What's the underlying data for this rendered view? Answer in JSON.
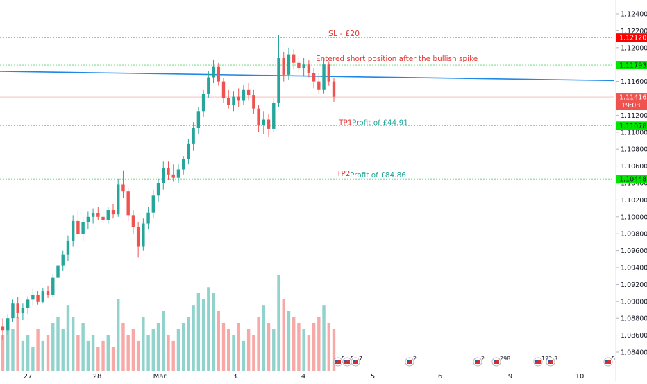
{
  "chart_data": {
    "type": "candlestick",
    "symbol_hint": "EURUSD-style price chart",
    "y_axis": {
      "ticks": [
        "1.12400",
        "1.12200",
        "1.12000",
        "1.11800",
        "1.11600",
        "1.11400",
        "1.11200",
        "1.11000",
        "1.10800",
        "1.10600",
        "1.10400",
        "1.10200",
        "1.10000",
        "1.09800",
        "1.09600",
        "1.09400",
        "1.09200",
        "1.09000",
        "1.08800",
        "1.08600",
        "1.08400"
      ],
      "range": [
        1.0828,
        1.125
      ]
    },
    "x_axis": {
      "ticks": [
        "27",
        "28",
        "Mar",
        "3",
        "4",
        "5",
        "6",
        "9",
        "10"
      ]
    },
    "horizontal_levels": [
      {
        "id": "sl",
        "label": "SL - £20",
        "price": 1.1212,
        "price_label": "1.12120",
        "color": "#e53935",
        "badge_color": "#ff0000"
      },
      {
        "id": "entry",
        "label": "Entered short position after the bullish spike",
        "price": 1.11793,
        "price_label": "1.11793",
        "color": "#2ecc40",
        "badge_color": "#00e600"
      },
      {
        "id": "tp1",
        "label": "TP1",
        "sub_label": "Profit of £44.91",
        "price": 1.11078,
        "price_label": "1.11078",
        "color": "#2ecc40",
        "badge_color": "#00e600"
      },
      {
        "id": "tp2",
        "label": "TP2",
        "sub_label": "Profit of £84.86",
        "price": 1.10448,
        "price_label": "1.10448",
        "color": "#2ecc40",
        "badge_color": "#00e600"
      }
    ],
    "current_price": {
      "price": 1.11416,
      "price_label": "1.11416",
      "countdown": "19:03",
      "color": "#ef5350"
    },
    "trend_line": {
      "color": "#1e88e5",
      "from": {
        "x": "26",
        "price": 1.1172
      },
      "to": {
        "x": "10",
        "price": 1.1161
      }
    },
    "candles": [
      {
        "o": 1.087,
        "h": 1.088,
        "l": 1.0855,
        "c": 1.0866
      },
      {
        "o": 1.0866,
        "h": 1.0885,
        "l": 1.086,
        "c": 1.088
      },
      {
        "o": 1.088,
        "h": 1.0902,
        "l": 1.0876,
        "c": 1.0898
      },
      {
        "o": 1.0898,
        "h": 1.0905,
        "l": 1.088,
        "c": 1.0886
      },
      {
        "o": 1.0886,
        "h": 1.0898,
        "l": 1.0878,
        "c": 1.0892
      },
      {
        "o": 1.0892,
        "h": 1.0906,
        "l": 1.0885,
        "c": 1.0902
      },
      {
        "o": 1.0902,
        "h": 1.0915,
        "l": 1.0895,
        "c": 1.0908
      },
      {
        "o": 1.0908,
        "h": 1.0912,
        "l": 1.0896,
        "c": 1.09
      },
      {
        "o": 1.09,
        "h": 1.0916,
        "l": 1.0898,
        "c": 1.0912
      },
      {
        "o": 1.0912,
        "h": 1.0918,
        "l": 1.0904,
        "c": 1.0908
      },
      {
        "o": 1.0908,
        "h": 1.0932,
        "l": 1.0905,
        "c": 1.0928
      },
      {
        "o": 1.0928,
        "h": 1.0948,
        "l": 1.0922,
        "c": 1.0942
      },
      {
        "o": 1.0942,
        "h": 1.096,
        "l": 1.0936,
        "c": 1.0955
      },
      {
        "o": 1.0955,
        "h": 1.0978,
        "l": 1.0948,
        "c": 1.0972
      },
      {
        "o": 1.0972,
        "h": 1.1002,
        "l": 1.0965,
        "c": 1.0995
      },
      {
        "o": 1.0995,
        "h": 1.1008,
        "l": 1.0975,
        "c": 1.098
      },
      {
        "o": 1.098,
        "h": 1.1,
        "l": 1.0972,
        "c": 1.0994
      },
      {
        "o": 1.0994,
        "h": 1.1006,
        "l": 1.0985,
        "c": 1.1
      },
      {
        "o": 1.1,
        "h": 1.101,
        "l": 1.0992,
        "c": 1.1004
      },
      {
        "o": 1.1004,
        "h": 1.1012,
        "l": 1.0996,
        "c": 1.1
      },
      {
        "o": 1.1,
        "h": 1.1008,
        "l": 1.099,
        "c": 1.0996
      },
      {
        "o": 1.0996,
        "h": 1.1012,
        "l": 1.0992,
        "c": 1.1008
      },
      {
        "o": 1.1008,
        "h": 1.1015,
        "l": 1.0998,
        "c": 1.1003
      },
      {
        "o": 1.1003,
        "h": 1.1045,
        "l": 1.1,
        "c": 1.1038
      },
      {
        "o": 1.1038,
        "h": 1.1055,
        "l": 1.1022,
        "c": 1.103
      },
      {
        "o": 1.103,
        "h": 1.1034,
        "l": 1.0995,
        "c": 1.1002
      },
      {
        "o": 1.1002,
        "h": 1.1008,
        "l": 1.098,
        "c": 1.0988
      },
      {
        "o": 1.0988,
        "h": 1.0994,
        "l": 1.0952,
        "c": 1.0965
      },
      {
        "o": 1.0965,
        "h": 1.0998,
        "l": 1.096,
        "c": 1.0992
      },
      {
        "o": 1.0992,
        "h": 1.1012,
        "l": 1.0985,
        "c": 1.1005
      },
      {
        "o": 1.1005,
        "h": 1.1032,
        "l": 1.0998,
        "c": 1.1025
      },
      {
        "o": 1.1025,
        "h": 1.1045,
        "l": 1.1018,
        "c": 1.104
      },
      {
        "o": 1.104,
        "h": 1.1066,
        "l": 1.1032,
        "c": 1.1058
      },
      {
        "o": 1.1058,
        "h": 1.1066,
        "l": 1.1044,
        "c": 1.105
      },
      {
        "o": 1.105,
        "h": 1.1062,
        "l": 1.1042,
        "c": 1.1046
      },
      {
        "o": 1.1046,
        "h": 1.1062,
        "l": 1.104,
        "c": 1.1056
      },
      {
        "o": 1.1056,
        "h": 1.1072,
        "l": 1.105,
        "c": 1.1068
      },
      {
        "o": 1.1068,
        "h": 1.1092,
        "l": 1.1062,
        "c": 1.1086
      },
      {
        "o": 1.1086,
        "h": 1.1112,
        "l": 1.1078,
        "c": 1.1105
      },
      {
        "o": 1.1105,
        "h": 1.113,
        "l": 1.1098,
        "c": 1.1125
      },
      {
        "o": 1.1125,
        "h": 1.115,
        "l": 1.1118,
        "c": 1.1145
      },
      {
        "o": 1.1145,
        "h": 1.1172,
        "l": 1.114,
        "c": 1.1165
      },
      {
        "o": 1.1165,
        "h": 1.1186,
        "l": 1.1158,
        "c": 1.1178
      },
      {
        "o": 1.1178,
        "h": 1.1182,
        "l": 1.1155,
        "c": 1.116
      },
      {
        "o": 1.116,
        "h": 1.1164,
        "l": 1.1135,
        "c": 1.114
      },
      {
        "o": 1.114,
        "h": 1.115,
        "l": 1.1128,
        "c": 1.1132
      },
      {
        "o": 1.1132,
        "h": 1.1148,
        "l": 1.1125,
        "c": 1.1142
      },
      {
        "o": 1.1142,
        "h": 1.1152,
        "l": 1.113,
        "c": 1.1138
      },
      {
        "o": 1.1138,
        "h": 1.1156,
        "l": 1.1132,
        "c": 1.115
      },
      {
        "o": 1.115,
        "h": 1.1158,
        "l": 1.1138,
        "c": 1.1144
      },
      {
        "o": 1.1144,
        "h": 1.115,
        "l": 1.1122,
        "c": 1.1128
      },
      {
        "o": 1.1128,
        "h": 1.1132,
        "l": 1.11,
        "c": 1.1108
      },
      {
        "o": 1.1108,
        "h": 1.1125,
        "l": 1.1098,
        "c": 1.1115
      },
      {
        "o": 1.1115,
        "h": 1.1122,
        "l": 1.1095,
        "c": 1.1104
      },
      {
        "o": 1.1104,
        "h": 1.114,
        "l": 1.11,
        "c": 1.1135
      },
      {
        "o": 1.1135,
        "h": 1.1215,
        "l": 1.113,
        "c": 1.1188
      },
      {
        "o": 1.1188,
        "h": 1.1195,
        "l": 1.116,
        "c": 1.1168
      },
      {
        "o": 1.1168,
        "h": 1.12,
        "l": 1.1162,
        "c": 1.1192
      },
      {
        "o": 1.1192,
        "h": 1.1198,
        "l": 1.1175,
        "c": 1.1182
      },
      {
        "o": 1.1182,
        "h": 1.119,
        "l": 1.117,
        "c": 1.1176
      },
      {
        "o": 1.1176,
        "h": 1.1188,
        "l": 1.1166,
        "c": 1.118
      },
      {
        "o": 1.118,
        "h": 1.1185,
        "l": 1.1165,
        "c": 1.117
      },
      {
        "o": 1.117,
        "h": 1.1176,
        "l": 1.1152,
        "c": 1.116
      },
      {
        "o": 1.116,
        "h": 1.117,
        "l": 1.1145,
        "c": 1.115
      },
      {
        "o": 1.115,
        "h": 1.1188,
        "l": 1.1146,
        "c": 1.118
      },
      {
        "o": 1.118,
        "h": 1.1184,
        "l": 1.1155,
        "c": 1.116
      },
      {
        "o": 1.116,
        "h": 1.1164,
        "l": 1.1136,
        "c": 1.1142
      }
    ],
    "volume": [
      6,
      8,
      7,
      9,
      5,
      6,
      4,
      7,
      5,
      6,
      8,
      9,
      7,
      11,
      9,
      6,
      8,
      5,
      6,
      4,
      5,
      6,
      4,
      12,
      8,
      6,
      7,
      5,
      9,
      6,
      7,
      8,
      10,
      6,
      5,
      7,
      8,
      9,
      11,
      13,
      12,
      14,
      13,
      10,
      8,
      7,
      6,
      8,
      5,
      7,
      6,
      9,
      11,
      8,
      7,
      16,
      12,
      10,
      9,
      8,
      7,
      6,
      8,
      9,
      11,
      8,
      7
    ],
    "event_markers": [
      {
        "label": "5"
      },
      {
        "label": "5"
      },
      {
        "label": "7"
      },
      {
        "label": "2"
      },
      {
        "label": "2"
      },
      {
        "label": "298"
      },
      {
        "label": "122"
      },
      {
        "label": "3"
      },
      {
        "label": "5"
      }
    ]
  }
}
